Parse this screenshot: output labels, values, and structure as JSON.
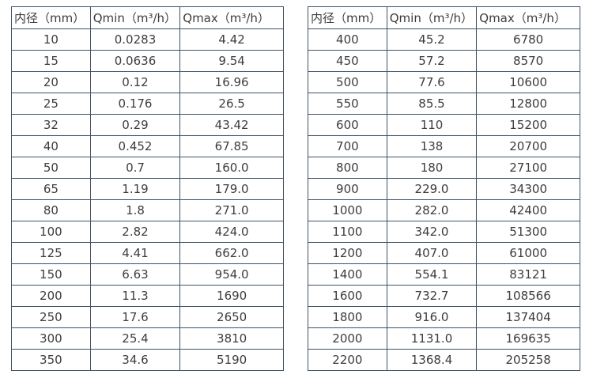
{
  "colors": {
    "border": "#3f5264",
    "text": "#3d3d3d",
    "background": "#ffffff"
  },
  "tables": [
    {
      "name": "flow-rate-table-small-diameters",
      "headers": [
        "内径（mm）",
        "Qmin（m³/h）",
        "Qmax（m³/h）"
      ],
      "rows": [
        [
          "10",
          "0.0283",
          "4.42"
        ],
        [
          "15",
          "0.0636",
          "9.54"
        ],
        [
          "20",
          "0.12",
          "16.96"
        ],
        [
          "25",
          "0.176",
          "26.5"
        ],
        [
          "32",
          "0.29",
          "43.42"
        ],
        [
          "40",
          "0.452",
          "67.85"
        ],
        [
          "50",
          "0.7",
          "160.0"
        ],
        [
          "65",
          "1.19",
          "179.0"
        ],
        [
          "80",
          "1.8",
          "271.0"
        ],
        [
          "100",
          "2.82",
          "424.0"
        ],
        [
          "125",
          "4.41",
          "662.0"
        ],
        [
          "150",
          "6.63",
          "954.0"
        ],
        [
          "200",
          "11.3",
          "1690"
        ],
        [
          "250",
          "17.6",
          "2650"
        ],
        [
          "300",
          "25.4",
          "3810"
        ],
        [
          "350",
          "34.6",
          "5190"
        ]
      ]
    },
    {
      "name": "flow-rate-table-large-diameters",
      "headers": [
        "内径（mm）",
        "Qmin（m³/h）",
        "Qmax（m³/h）"
      ],
      "rows": [
        [
          "400",
          "45.2",
          "6780"
        ],
        [
          "450",
          "57.2",
          "8570"
        ],
        [
          "500",
          "77.6",
          "10600"
        ],
        [
          "550",
          "85.5",
          "12800"
        ],
        [
          "600",
          "110",
          "15200"
        ],
        [
          "700",
          "138",
          "20700"
        ],
        [
          "800",
          "180",
          "27100"
        ],
        [
          "900",
          "229.0",
          "34300"
        ],
        [
          "1000",
          "282.0",
          "42400"
        ],
        [
          "1100",
          "342.0",
          "51300"
        ],
        [
          "1200",
          "407.0",
          "61000"
        ],
        [
          "1400",
          "554.1",
          "83121"
        ],
        [
          "1600",
          "732.7",
          "108566"
        ],
        [
          "1800",
          "916.0",
          "137404"
        ],
        [
          "2000",
          "1131.0",
          "169635"
        ],
        [
          "2200",
          "1368.4",
          "205258"
        ]
      ]
    }
  ]
}
